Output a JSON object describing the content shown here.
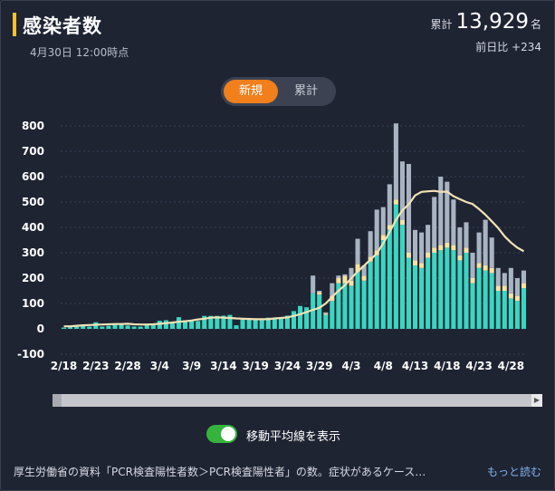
{
  "header": {
    "title": "感染者数",
    "timestamp": "4月30日 12:00時点",
    "total_label": "累計",
    "total_value": "13,929",
    "total_unit": "名",
    "diff_text": "前日比 +234"
  },
  "toggle": {
    "new_label": "新規",
    "cumulative_label": "累計",
    "selected": "新規"
  },
  "moving_average": {
    "label": "移動平均線を表示",
    "enabled": true
  },
  "footer": {
    "note": "厚生労働省の資料「PCR検査陽性者数＞PCR検査陽性者」の数。症状があるケース…",
    "more_link": "もっと読む"
  },
  "colors": {
    "primary": "#3ad6c2",
    "secondary": "#f5e3a6",
    "tertiary": "#a9b4c2",
    "line": "#f2e2b4",
    "accent": "#f07f1c"
  },
  "chart_data": {
    "type": "bar",
    "ylim": [
      -100,
      800
    ],
    "yticks": [
      -100,
      0,
      100,
      200,
      300,
      400,
      500,
      600,
      700,
      800
    ],
    "grid": true,
    "xtick_labels": [
      "2/18",
      "2/23",
      "2/28",
      "3/4",
      "3/9",
      "3/14",
      "3/19",
      "3/24",
      "3/29",
      "4/3",
      "4/8",
      "4/13",
      "4/18",
      "4/23",
      "4/28"
    ],
    "categories": [
      "2/18",
      "2/19",
      "2/20",
      "2/21",
      "2/22",
      "2/23",
      "2/24",
      "2/25",
      "2/26",
      "2/27",
      "2/28",
      "2/29",
      "3/1",
      "3/2",
      "3/3",
      "3/4",
      "3/5",
      "3/6",
      "3/7",
      "3/8",
      "3/9",
      "3/10",
      "3/11",
      "3/12",
      "3/13",
      "3/14",
      "3/15",
      "3/16",
      "3/17",
      "3/18",
      "3/19",
      "3/20",
      "3/21",
      "3/22",
      "3/23",
      "3/24",
      "3/25",
      "3/26",
      "3/27",
      "3/28",
      "3/29",
      "3/30",
      "3/31",
      "4/1",
      "4/2",
      "4/3",
      "4/4",
      "4/5",
      "4/6",
      "4/7",
      "4/8",
      "4/9",
      "4/10",
      "4/11",
      "4/12",
      "4/13",
      "4/14",
      "4/15",
      "4/16",
      "4/17",
      "4/18",
      "4/19",
      "4/20",
      "4/21",
      "4/22",
      "4/23",
      "4/24",
      "4/25",
      "4/26",
      "4/27",
      "4/28",
      "4/29",
      "4/30"
    ],
    "series": [
      {
        "values": [
          5,
          7,
          9,
          11,
          9,
          26,
          9,
          12,
          20,
          22,
          13,
          9,
          9,
          17,
          14,
          32,
          34,
          22,
          46,
          34,
          31,
          31,
          51,
          51,
          51,
          52,
          55,
          14,
          42,
          43,
          41,
          38,
          44,
          38,
          41,
          52,
          70,
          90,
          85,
          140,
          135,
          55,
          110,
          180,
          180,
          170,
          225,
          190,
          265,
          290,
          350,
          390,
          490,
          410,
          280,
          250,
          240,
          280,
          300,
          310,
          320,
          310,
          270,
          300,
          180,
          240,
          230,
          220,
          150,
          150,
          120,
          110,
          160
        ]
      },
      {
        "values": [
          0,
          0,
          0,
          0,
          0,
          0,
          0,
          0,
          0,
          0,
          0,
          0,
          0,
          0,
          0,
          0,
          0,
          0,
          0,
          0,
          0,
          0,
          0,
          0,
          0,
          0,
          0,
          0,
          0,
          0,
          0,
          0,
          0,
          0,
          0,
          0,
          0,
          0,
          0,
          0,
          10,
          5,
          20,
          20,
          30,
          20,
          30,
          20,
          20,
          20,
          20,
          20,
          20,
          20,
          20,
          20,
          20,
          20,
          20,
          20,
          20,
          20,
          20,
          20,
          20,
          20,
          20,
          20,
          20,
          20,
          20,
          20,
          20
        ]
      },
      {
        "values": [
          0,
          0,
          0,
          0,
          0,
          0,
          0,
          0,
          0,
          0,
          0,
          0,
          0,
          0,
          0,
          0,
          0,
          0,
          0,
          0,
          0,
          0,
          0,
          0,
          0,
          0,
          0,
          0,
          0,
          0,
          0,
          0,
          0,
          0,
          0,
          0,
          0,
          0,
          0,
          70,
          5,
          5,
          50,
          10,
          5,
          50,
          100,
          40,
          100,
          160,
          110,
          160,
          300,
          230,
          350,
          120,
          120,
          110,
          200,
          270,
          240,
          180,
          110,
          100,
          100,
          120,
          180,
          120,
          70,
          50,
          100,
          70,
          50
        ]
      }
    ],
    "moving_average": [
      10,
      10,
      12,
      14,
      15,
      16,
      17,
      18,
      19,
      19,
      20,
      18,
      17,
      17,
      18,
      20,
      22,
      25,
      28,
      30,
      33,
      37,
      40,
      44,
      45,
      44,
      43,
      41,
      40,
      39,
      38,
      38,
      38,
      41,
      43,
      45,
      51,
      58,
      66,
      75,
      83,
      100,
      126,
      150,
      172,
      199,
      226,
      249,
      273,
      297,
      337,
      381,
      430,
      467,
      491,
      526,
      540,
      542,
      544,
      540,
      541,
      523,
      511,
      500,
      492,
      472,
      450,
      424,
      397,
      365,
      340,
      320,
      306
    ]
  }
}
